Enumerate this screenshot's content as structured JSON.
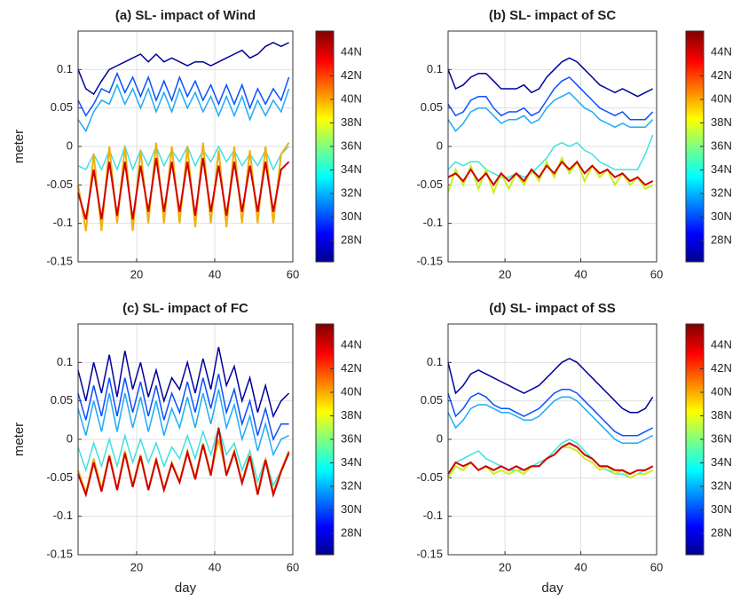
{
  "chart_data": [
    {
      "type": "line",
      "title": "(a) SL- impact of Wind",
      "ylabel": "meter",
      "x": [
        5,
        7,
        9,
        11,
        13,
        15,
        17,
        19,
        21,
        23,
        25,
        27,
        29,
        31,
        33,
        35,
        37,
        39,
        41,
        43,
        45,
        47,
        49,
        51,
        53,
        55,
        57,
        59
      ],
      "xlim": [
        5,
        60
      ],
      "ylim": [
        -0.15,
        0.15
      ],
      "xticks": [
        20,
        40,
        60
      ],
      "yticks": [
        -0.15,
        -0.1,
        -0.05,
        0,
        0.05,
        0.1
      ],
      "grid": true,
      "colorbar_ticks": [
        "28N",
        "30N",
        "32N",
        "34N",
        "36N",
        "38N",
        "40N",
        "42N",
        "44N"
      ],
      "series": [
        {
          "color": "#00009c",
          "values": [
            0.1,
            0.075,
            0.068,
            0.085,
            0.1,
            0.105,
            0.11,
            0.115,
            0.12,
            0.11,
            0.12,
            0.11,
            0.115,
            0.11,
            0.105,
            0.11,
            0.11,
            0.105,
            0.11,
            0.115,
            0.12,
            0.125,
            0.115,
            0.12,
            0.13,
            0.135,
            0.13,
            0.135
          ]
        },
        {
          "color": "#0a50ff",
          "values": [
            0.06,
            0.04,
            0.055,
            0.075,
            0.07,
            0.095,
            0.07,
            0.09,
            0.065,
            0.09,
            0.06,
            0.085,
            0.06,
            0.09,
            0.065,
            0.085,
            0.06,
            0.08,
            0.055,
            0.08,
            0.055,
            0.08,
            0.05,
            0.075,
            0.055,
            0.075,
            0.06,
            0.09
          ]
        },
        {
          "color": "#1eaaf5",
          "values": [
            0.035,
            0.02,
            0.045,
            0.06,
            0.055,
            0.08,
            0.055,
            0.075,
            0.05,
            0.075,
            0.045,
            0.07,
            0.045,
            0.075,
            0.05,
            0.07,
            0.045,
            0.065,
            0.04,
            0.065,
            0.04,
            0.065,
            0.035,
            0.06,
            0.04,
            0.06,
            0.045,
            0.075
          ]
        },
        {
          "color": "#40e0e0",
          "values": [
            -0.025,
            -0.03,
            -0.01,
            -0.03,
            -0.005,
            -0.03,
            0,
            -0.03,
            -0.005,
            -0.025,
            0,
            -0.025,
            -0.005,
            -0.02,
            0,
            -0.025,
            -0.005,
            -0.02,
            0,
            -0.02,
            -0.005,
            -0.025,
            -0.01,
            -0.025,
            -0.005,
            -0.03,
            -0.01,
            0
          ]
        },
        {
          "color": "#f0b010",
          "values": [
            -0.05,
            -0.11,
            -0.01,
            -0.11,
            0,
            -0.1,
            0,
            -0.11,
            -0.005,
            -0.1,
            0.005,
            -0.1,
            0,
            -0.1,
            0,
            -0.105,
            0.005,
            -0.1,
            -0.005,
            -0.105,
            0,
            -0.1,
            -0.005,
            -0.1,
            0,
            -0.1,
            -0.01,
            0.005
          ]
        },
        {
          "color": "#d00000",
          "values": [
            -0.06,
            -0.095,
            -0.03,
            -0.095,
            -0.02,
            -0.09,
            -0.02,
            -0.095,
            -0.025,
            -0.085,
            -0.015,
            -0.085,
            -0.02,
            -0.085,
            -0.02,
            -0.09,
            -0.015,
            -0.085,
            -0.025,
            -0.09,
            -0.02,
            -0.085,
            -0.025,
            -0.085,
            -0.02,
            -0.085,
            -0.03,
            -0.02
          ]
        }
      ]
    },
    {
      "type": "line",
      "title": "(b) SL- impact of SC",
      "x": [
        5,
        7,
        9,
        11,
        13,
        15,
        17,
        19,
        21,
        23,
        25,
        27,
        29,
        31,
        33,
        35,
        37,
        39,
        41,
        43,
        45,
        47,
        49,
        51,
        53,
        55,
        57,
        59
      ],
      "xlim": [
        5,
        60
      ],
      "ylim": [
        -0.15,
        0.15
      ],
      "xticks": [
        20,
        40,
        60
      ],
      "yticks": [
        -0.15,
        -0.1,
        -0.05,
        0,
        0.05,
        0.1
      ],
      "grid": true,
      "colorbar_ticks": [
        "28N",
        "30N",
        "32N",
        "34N",
        "36N",
        "38N",
        "40N",
        "42N",
        "44N"
      ],
      "series": [
        {
          "color": "#00009c",
          "values": [
            0.1,
            0.075,
            0.08,
            0.09,
            0.095,
            0.095,
            0.085,
            0.075,
            0.075,
            0.075,
            0.08,
            0.07,
            0.075,
            0.09,
            0.1,
            0.11,
            0.115,
            0.11,
            0.1,
            0.09,
            0.08,
            0.075,
            0.07,
            0.075,
            0.07,
            0.065,
            0.07,
            0.075
          ]
        },
        {
          "color": "#0a50ff",
          "values": [
            0.055,
            0.04,
            0.045,
            0.06,
            0.065,
            0.065,
            0.05,
            0.04,
            0.045,
            0.045,
            0.05,
            0.04,
            0.045,
            0.06,
            0.075,
            0.085,
            0.09,
            0.08,
            0.07,
            0.06,
            0.05,
            0.045,
            0.04,
            0.045,
            0.035,
            0.035,
            0.035,
            0.045
          ]
        },
        {
          "color": "#1eaaf5",
          "values": [
            0.035,
            0.02,
            0.03,
            0.045,
            0.05,
            0.05,
            0.04,
            0.03,
            0.035,
            0.035,
            0.04,
            0.03,
            0.035,
            0.05,
            0.06,
            0.065,
            0.07,
            0.06,
            0.05,
            0.045,
            0.035,
            0.03,
            0.025,
            0.03,
            0.025,
            0.025,
            0.025,
            0.035
          ]
        },
        {
          "color": "#40e0e0",
          "values": [
            -0.03,
            -0.02,
            -0.025,
            -0.02,
            -0.02,
            -0.03,
            -0.035,
            -0.04,
            -0.04,
            -0.035,
            -0.04,
            -0.035,
            -0.025,
            -0.015,
            0,
            0.005,
            0,
            0.005,
            -0.005,
            -0.01,
            -0.02,
            -0.025,
            -0.03,
            -0.03,
            -0.03,
            -0.03,
            -0.01,
            0.015
          ]
        },
        {
          "color": "#c8f020",
          "values": [
            -0.06,
            -0.03,
            -0.05,
            -0.025,
            -0.055,
            -0.03,
            -0.06,
            -0.035,
            -0.055,
            -0.035,
            -0.05,
            -0.03,
            -0.045,
            -0.02,
            -0.04,
            -0.015,
            -0.035,
            -0.02,
            -0.045,
            -0.025,
            -0.04,
            -0.03,
            -0.05,
            -0.035,
            -0.05,
            -0.04,
            -0.055,
            -0.05
          ]
        },
        {
          "color": "#d00000",
          "values": [
            -0.04,
            -0.035,
            -0.045,
            -0.03,
            -0.045,
            -0.035,
            -0.05,
            -0.035,
            -0.045,
            -0.035,
            -0.045,
            -0.03,
            -0.04,
            -0.025,
            -0.035,
            -0.02,
            -0.03,
            -0.02,
            -0.035,
            -0.025,
            -0.035,
            -0.03,
            -0.04,
            -0.035,
            -0.045,
            -0.04,
            -0.05,
            -0.045
          ]
        }
      ]
    },
    {
      "type": "line",
      "title": "(c) SL- impact of FC",
      "ylabel": "meter",
      "xlabel": "day",
      "x": [
        5,
        7,
        9,
        11,
        13,
        15,
        17,
        19,
        21,
        23,
        25,
        27,
        29,
        31,
        33,
        35,
        37,
        39,
        41,
        43,
        45,
        47,
        49,
        51,
        53,
        55,
        57,
        59
      ],
      "xlim": [
        5,
        60
      ],
      "ylim": [
        -0.15,
        0.15
      ],
      "xticks": [
        20,
        40,
        60
      ],
      "yticks": [
        -0.15,
        -0.1,
        -0.05,
        0,
        0.05,
        0.1
      ],
      "grid": true,
      "colorbar_ticks": [
        "28N",
        "30N",
        "32N",
        "34N",
        "36N",
        "38N",
        "40N",
        "42N",
        "44N"
      ],
      "series": [
        {
          "color": "#00009c",
          "values": [
            0.09,
            0.05,
            0.1,
            0.06,
            0.11,
            0.055,
            0.115,
            0.065,
            0.1,
            0.055,
            0.09,
            0.05,
            0.08,
            0.065,
            0.1,
            0.06,
            0.105,
            0.065,
            0.12,
            0.07,
            0.095,
            0.05,
            0.08,
            0.035,
            0.07,
            0.03,
            0.05,
            0.06
          ]
        },
        {
          "color": "#0a50ff",
          "values": [
            0.06,
            0.025,
            0.07,
            0.03,
            0.08,
            0.03,
            0.08,
            0.035,
            0.075,
            0.03,
            0.07,
            0.025,
            0.06,
            0.035,
            0.075,
            0.035,
            0.08,
            0.04,
            0.085,
            0.035,
            0.065,
            0.02,
            0.05,
            0.005,
            0.04,
            0,
            0.02,
            0.02
          ]
        },
        {
          "color": "#1eaaf5",
          "values": [
            0.04,
            0.005,
            0.05,
            0.01,
            0.06,
            0.01,
            0.06,
            0.015,
            0.055,
            0.01,
            0.05,
            0.005,
            0.04,
            0.015,
            0.055,
            0.015,
            0.06,
            0.02,
            0.065,
            0.015,
            0.045,
            0,
            0.03,
            -0.015,
            0.02,
            -0.02,
            0,
            0.005
          ]
        },
        {
          "color": "#40e0e0",
          "values": [
            -0.01,
            -0.04,
            -0.005,
            -0.035,
            0,
            -0.035,
            0.005,
            -0.03,
            0,
            -0.03,
            -0.005,
            -0.035,
            -0.01,
            -0.025,
            0.005,
            -0.025,
            0.01,
            -0.02,
            0.015,
            -0.02,
            -0.005,
            -0.04,
            -0.015,
            -0.055,
            -0.025,
            -0.06,
            -0.04,
            -0.02
          ]
        },
        {
          "color": "#f0b010",
          "values": [
            -0.04,
            -0.07,
            -0.025,
            -0.065,
            -0.02,
            -0.065,
            -0.015,
            -0.06,
            -0.02,
            -0.065,
            -0.025,
            -0.065,
            -0.03,
            -0.055,
            -0.015,
            -0.05,
            -0.005,
            -0.045,
            0,
            -0.045,
            -0.015,
            -0.055,
            -0.02,
            -0.07,
            -0.025,
            -0.07,
            -0.04,
            -0.015
          ]
        },
        {
          "color": "#d00000",
          "values": [
            -0.045,
            -0.072,
            -0.03,
            -0.068,
            -0.022,
            -0.066,
            -0.018,
            -0.062,
            -0.022,
            -0.066,
            -0.027,
            -0.066,
            -0.032,
            -0.056,
            -0.017,
            -0.052,
            -0.007,
            -0.047,
            0.015,
            -0.047,
            -0.017,
            -0.057,
            -0.022,
            -0.072,
            -0.027,
            -0.072,
            -0.042,
            -0.017
          ]
        }
      ]
    },
    {
      "type": "line",
      "title": "(d) SL- impact of SS",
      "xlabel": "day",
      "x": [
        5,
        7,
        9,
        11,
        13,
        15,
        17,
        19,
        21,
        23,
        25,
        27,
        29,
        31,
        33,
        35,
        37,
        39,
        41,
        43,
        45,
        47,
        49,
        51,
        53,
        55,
        57,
        59
      ],
      "xlim": [
        5,
        60
      ],
      "ylim": [
        -0.15,
        0.15
      ],
      "xticks": [
        20,
        40,
        60
      ],
      "yticks": [
        -0.15,
        -0.1,
        -0.05,
        0,
        0.05,
        0.1
      ],
      "grid": true,
      "colorbar_ticks": [
        "28N",
        "30N",
        "32N",
        "34N",
        "36N",
        "38N",
        "40N",
        "42N",
        "44N"
      ],
      "series": [
        {
          "color": "#00009c",
          "values": [
            0.1,
            0.06,
            0.07,
            0.085,
            0.09,
            0.085,
            0.08,
            0.075,
            0.07,
            0.065,
            0.06,
            0.065,
            0.07,
            0.08,
            0.09,
            0.1,
            0.105,
            0.1,
            0.09,
            0.08,
            0.07,
            0.06,
            0.05,
            0.04,
            0.035,
            0.035,
            0.04,
            0.055
          ]
        },
        {
          "color": "#0a50ff",
          "values": [
            0.06,
            0.03,
            0.04,
            0.055,
            0.06,
            0.055,
            0.045,
            0.04,
            0.04,
            0.035,
            0.03,
            0.035,
            0.04,
            0.05,
            0.06,
            0.065,
            0.065,
            0.06,
            0.05,
            0.04,
            0.03,
            0.02,
            0.01,
            0.005,
            0.005,
            0.005,
            0.01,
            0.015
          ]
        },
        {
          "color": "#1eaaf5",
          "values": [
            0.035,
            0.015,
            0.025,
            0.04,
            0.045,
            0.045,
            0.04,
            0.035,
            0.035,
            0.03,
            0.025,
            0.025,
            0.03,
            0.04,
            0.05,
            0.055,
            0.055,
            0.05,
            0.04,
            0.03,
            0.02,
            0.01,
            0,
            -0.005,
            -0.005,
            -0.005,
            0,
            0.005
          ]
        },
        {
          "color": "#40e0e0",
          "values": [
            -0.05,
            -0.03,
            -0.025,
            -0.02,
            -0.015,
            -0.025,
            -0.03,
            -0.035,
            -0.04,
            -0.04,
            -0.04,
            -0.035,
            -0.03,
            -0.025,
            -0.015,
            -0.005,
            0,
            -0.005,
            -0.015,
            -0.025,
            -0.035,
            -0.04,
            -0.045,
            -0.045,
            -0.05,
            -0.045,
            -0.04,
            -0.035
          ]
        },
        {
          "color": "#c8f020",
          "values": [
            -0.05,
            -0.035,
            -0.04,
            -0.03,
            -0.04,
            -0.035,
            -0.045,
            -0.04,
            -0.045,
            -0.04,
            -0.045,
            -0.035,
            -0.035,
            -0.025,
            -0.02,
            -0.01,
            -0.01,
            -0.015,
            -0.025,
            -0.03,
            -0.04,
            -0.035,
            -0.045,
            -0.04,
            -0.05,
            -0.045,
            -0.045,
            -0.04
          ]
        },
        {
          "color": "#d00000",
          "values": [
            -0.045,
            -0.03,
            -0.035,
            -0.03,
            -0.04,
            -0.035,
            -0.04,
            -0.035,
            -0.04,
            -0.035,
            -0.04,
            -0.035,
            -0.035,
            -0.025,
            -0.02,
            -0.01,
            -0.005,
            -0.01,
            -0.02,
            -0.025,
            -0.035,
            -0.035,
            -0.04,
            -0.04,
            -0.045,
            -0.04,
            -0.04,
            -0.035
          ]
        }
      ]
    }
  ]
}
